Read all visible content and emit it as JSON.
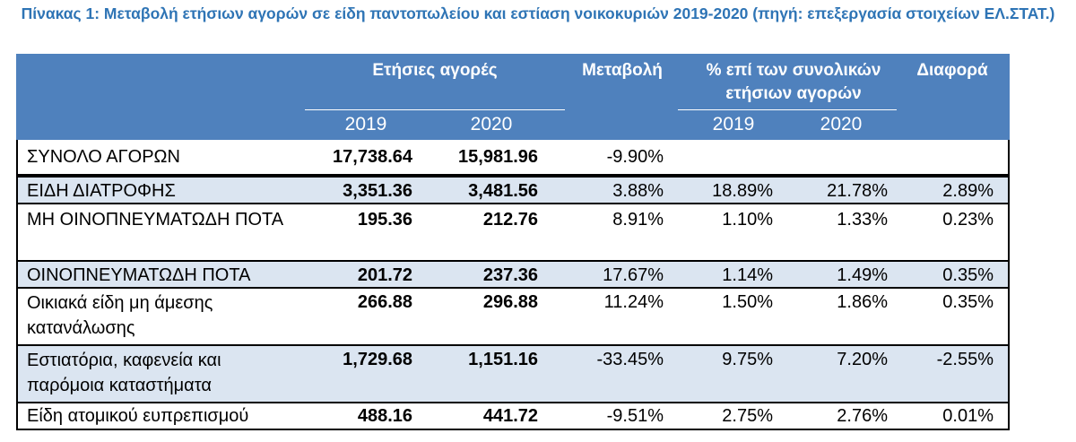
{
  "title": "Πίνακας 1: Μεταβολή ετήσιων αγορών σε είδη παντοπωλείου και εστίαση νοικοκυριών 2019-2020 (πηγή: επεξεργασία στοιχείων ΕΛ.ΣΤΑΤ.)",
  "header": {
    "annual": "Ετήσιες αγορές",
    "change": "Μεταβολή",
    "share": "% επί των συνολικών ετήσιων αγορών",
    "diff": "Διαφορά",
    "year1": "2019",
    "year2": "2020",
    "share_year1": "2019",
    "share_year2": "2020"
  },
  "rows": [
    {
      "label": "ΣΥΝΟΛΟ ΑΓΟΡΩΝ",
      "v2019": "17,738.64",
      "v2020": "15,981.96",
      "change": "-9.90%",
      "s2019": "",
      "s2020": "",
      "diff": ""
    },
    {
      "label": "ΕΙΔΗ ΔΙΑΤΡΟΦΗΣ",
      "v2019": "3,351.36",
      "v2020": "3,481.56",
      "change": "3.88%",
      "s2019": "18.89%",
      "s2020": "21.78%",
      "diff": "2.89%"
    },
    {
      "label": "ΜΗ ΟΙΝΟΠΝΕΥΜΑΤΩΔΗ ΠΟΤΑ",
      "v2019": "195.36",
      "v2020": "212.76",
      "change": "8.91%",
      "s2019": "1.10%",
      "s2020": "1.33%",
      "diff": "0.23%"
    },
    {
      "label": "ΟΙΝΟΠΝΕΥΜΑΤΩΔΗ ΠΟΤΑ",
      "v2019": "201.72",
      "v2020": "237.36",
      "change": "17.67%",
      "s2019": "1.14%",
      "s2020": "1.49%",
      "diff": "0.35%"
    },
    {
      "label": "Οικιακά είδη μη άμεσης κατανάλωσης",
      "v2019": "266.88",
      "v2020": "296.88",
      "change": "11.24%",
      "s2019": "1.50%",
      "s2020": "1.86%",
      "diff": "0.35%"
    },
    {
      "label": "Εστιατόρια, καφενεία και παρόμοια καταστήματα",
      "v2019": "1,729.68",
      "v2020": "1,151.16",
      "change": "-33.45%",
      "s2019": "9.75%",
      "s2020": "7.20%",
      "diff": "-2.55%"
    },
    {
      "label": "Είδη ατομικού ευπρεπισμού",
      "v2019": "488.16",
      "v2020": "441.72",
      "change": "-9.51%",
      "s2019": "2.75%",
      "s2020": "2.76%",
      "diff": "0.01%"
    }
  ]
}
